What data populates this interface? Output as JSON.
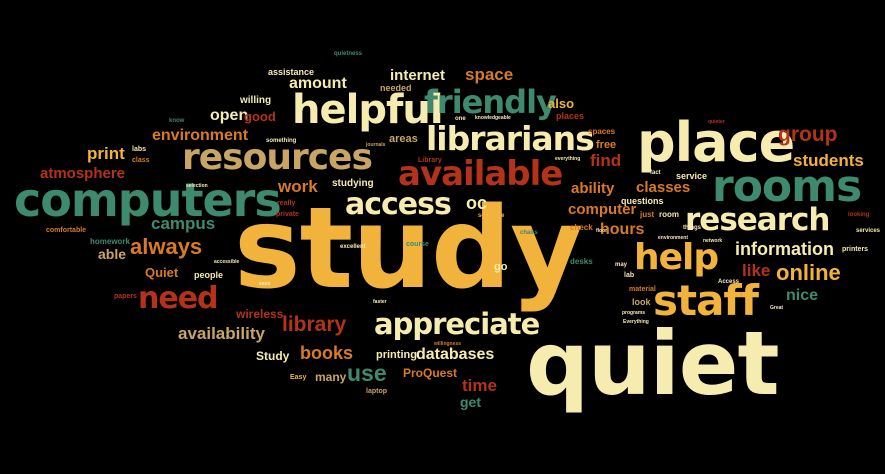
{
  "palette": {
    "background": "#000000",
    "yellow": "#f2b33d",
    "cream": "#f6ecb0",
    "green": "#3d8a6e",
    "orange": "#d97a26",
    "red": "#b5321a",
    "tan": "#c8a564"
  },
  "words": [
    {
      "text": "study",
      "color": "#f2b33d"
    },
    {
      "text": "quiet",
      "color": "#f6ecb0"
    },
    {
      "text": "place",
      "color": "#f6ecb0"
    },
    {
      "text": "computers",
      "color": "#3d8a6e"
    },
    {
      "text": "resources",
      "color": "#c8a564"
    },
    {
      "text": "helpful",
      "color": "#f6ecb0"
    },
    {
      "text": "rooms",
      "color": "#3d8a6e"
    },
    {
      "text": "librarians",
      "color": "#f6ecb0"
    },
    {
      "text": "available",
      "color": "#b5321a"
    },
    {
      "text": "staff",
      "color": "#f2b33d"
    },
    {
      "text": "help",
      "color": "#f2b33d"
    },
    {
      "text": "research",
      "color": "#f6ecb0"
    },
    {
      "text": "friendly",
      "color": "#3d8a6e"
    },
    {
      "text": "access",
      "color": "#f6ecb0"
    },
    {
      "text": "appreciate",
      "color": "#f6ecb0"
    },
    {
      "text": "need",
      "color": "#b5321a"
    },
    {
      "text": "always",
      "color": "#d97a26"
    },
    {
      "text": "online",
      "color": "#f2b33d"
    },
    {
      "text": "information",
      "color": "#f6ecb0"
    },
    {
      "text": "library",
      "color": "#b5321a"
    },
    {
      "text": "group",
      "color": "#b5321a"
    },
    {
      "text": "students",
      "color": "#f2b33d"
    },
    {
      "text": "availability",
      "color": "#c8a564"
    },
    {
      "text": "books",
      "color": "#d97a26"
    },
    {
      "text": "databases",
      "color": "#f6ecb0"
    },
    {
      "text": "use",
      "color": "#3d8a6e"
    },
    {
      "text": "time",
      "color": "#b5321a"
    },
    {
      "text": "amount",
      "color": "#f6ecb0"
    },
    {
      "text": "internet",
      "color": "#f6ecb0"
    },
    {
      "text": "space",
      "color": "#d97a26"
    },
    {
      "text": "environment",
      "color": "#d97a26"
    },
    {
      "text": "open",
      "color": "#f6ecb0"
    },
    {
      "text": "good",
      "color": "#b5321a"
    },
    {
      "text": "print",
      "color": "#f2b33d"
    },
    {
      "text": "atmosphere",
      "color": "#b5321a"
    },
    {
      "text": "work",
      "color": "#d97a26"
    },
    {
      "text": "campus",
      "color": "#3d8a6e"
    },
    {
      "text": "oc",
      "color": "#f6ecb0"
    },
    {
      "text": "ability",
      "color": "#d97a26"
    },
    {
      "text": "classes",
      "color": "#d97a26"
    },
    {
      "text": "find",
      "color": "#b5321a"
    },
    {
      "text": "computer",
      "color": "#d97a26"
    },
    {
      "text": "hours",
      "color": "#d97a26"
    },
    {
      "text": "like",
      "color": "#b5321a"
    },
    {
      "text": "nice",
      "color": "#3d8a6e"
    },
    {
      "text": "also",
      "color": "#f2b33d"
    },
    {
      "text": "able",
      "color": "#c8a564"
    },
    {
      "text": "Quiet",
      "color": "#d97a26"
    },
    {
      "text": "wireless",
      "color": "#b5321a"
    },
    {
      "text": "Study",
      "color": "#f6ecb0"
    },
    {
      "text": "printing",
      "color": "#f6ecb0"
    },
    {
      "text": "ProQuest",
      "color": "#d97a26"
    },
    {
      "text": "many",
      "color": "#c8a564"
    },
    {
      "text": "get",
      "color": "#3d8a6e"
    },
    {
      "text": "assistance",
      "color": "#f6ecb0"
    },
    {
      "text": "willing",
      "color": "#f6ecb0"
    },
    {
      "text": "needed",
      "color": "#c8a564"
    },
    {
      "text": "areas",
      "color": "#c8a564"
    },
    {
      "text": "free",
      "color": "#d97a26"
    },
    {
      "text": "places",
      "color": "#b5321a"
    },
    {
      "text": "spaces",
      "color": "#d97a26"
    },
    {
      "text": "questions",
      "color": "#f6ecb0"
    },
    {
      "text": "service",
      "color": "#f6ecb0"
    },
    {
      "text": "homework",
      "color": "#3d8a6e"
    },
    {
      "text": "comfortable",
      "color": "#d97a26"
    },
    {
      "text": "studying",
      "color": "#f6ecb0"
    },
    {
      "text": "people",
      "color": "#f6ecb0"
    },
    {
      "text": "papers",
      "color": "#b5321a"
    },
    {
      "text": "private",
      "color": "#b5321a"
    },
    {
      "text": "room",
      "color": "#f6ecb0"
    },
    {
      "text": "just",
      "color": "#d97a26"
    },
    {
      "text": "check",
      "color": "#d97a26"
    },
    {
      "text": "chairs",
      "color": "#3d8a6e"
    },
    {
      "text": "course",
      "color": "#3d8a6e"
    },
    {
      "text": "desks",
      "color": "#3d8a6e"
    },
    {
      "text": "material",
      "color": "#d97a26"
    },
    {
      "text": "look",
      "color": "#c8a564"
    },
    {
      "text": "lab",
      "color": "#f6ecb0"
    },
    {
      "text": "go",
      "color": "#f6ecb0"
    },
    {
      "text": "labs",
      "color": "#f6ecb0"
    },
    {
      "text": "class",
      "color": "#d97a26"
    },
    {
      "text": "Library",
      "color": "#b5321a"
    },
    {
      "text": "excellent",
      "color": "#f6ecb0"
    },
    {
      "text": "really",
      "color": "#b5321a"
    },
    {
      "text": "someone",
      "color": "#f2b33d"
    },
    {
      "text": "Easy",
      "color": "#f2b33d"
    },
    {
      "text": "laptop",
      "color": "#c8a564"
    },
    {
      "text": "printers",
      "color": "#f6ecb0"
    },
    {
      "text": "quietness",
      "color": "#3d8a6e"
    },
    {
      "text": "knowledgeable",
      "color": "#f6ecb0"
    },
    {
      "text": "things",
      "color": "#f6ecb0"
    },
    {
      "text": "fact",
      "color": "#f6ecb0"
    },
    {
      "text": "Access",
      "color": "#f6ecb0"
    },
    {
      "text": "network",
      "color": "#f6ecb0"
    },
    {
      "text": "looking",
      "color": "#b5321a"
    },
    {
      "text": "services",
      "color": "#f6ecb0"
    },
    {
      "text": "programs",
      "color": "#f6ecb0"
    },
    {
      "text": "willingness",
      "color": "#d97a26"
    },
    {
      "text": "everything",
      "color": "#f6ecb0"
    },
    {
      "text": "Everything",
      "color": "#f6ecb0"
    },
    {
      "text": "selection",
      "color": "#f6ecb0"
    },
    {
      "text": "know",
      "color": "#3d8a6e"
    },
    {
      "text": "something",
      "color": "#f6ecb0"
    },
    {
      "text": "one",
      "color": "#f6ecb0"
    },
    {
      "text": "may",
      "color": "#f6ecb0"
    },
    {
      "text": "floor",
      "color": "#f6ecb0"
    },
    {
      "text": "environment",
      "color": "#f6ecb0"
    },
    {
      "text": "Great",
      "color": "#f6ecb0"
    },
    {
      "text": "quieter",
      "color": "#b5321a"
    },
    {
      "text": "faster",
      "color": "#f6ecb0"
    },
    {
      "text": "accessible",
      "color": "#f6ecb0"
    },
    {
      "text": "easo",
      "color": "#f6ecb0"
    },
    {
      "text": "journals",
      "color": "#c8a564"
    }
  ]
}
